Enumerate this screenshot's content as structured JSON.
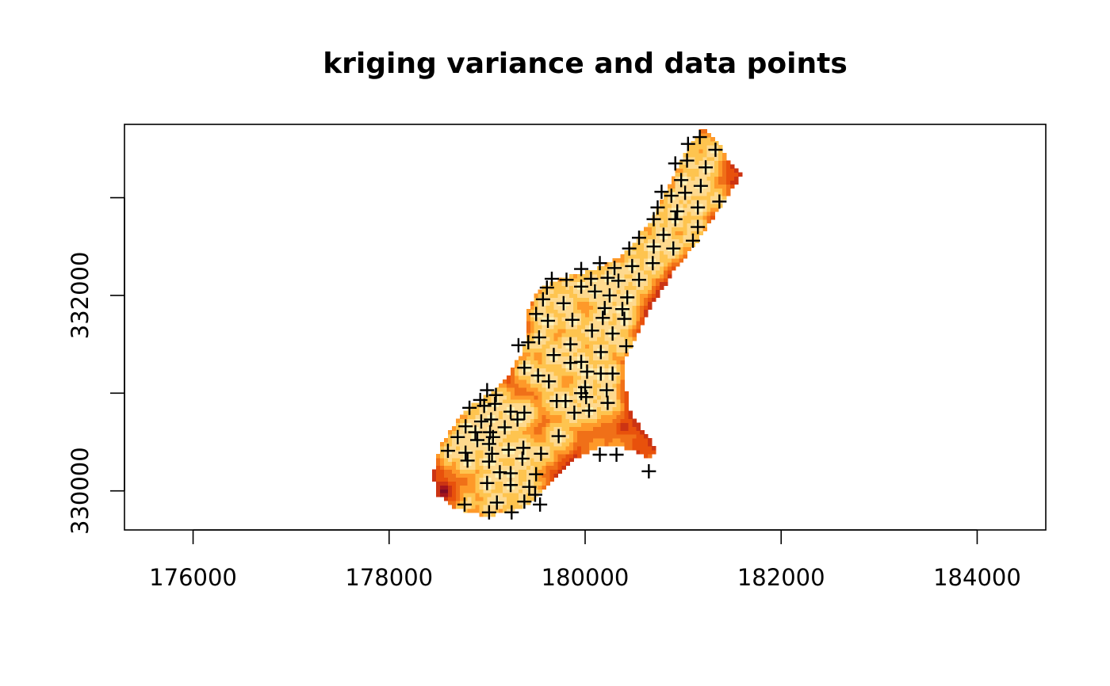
{
  "chart_data": {
    "type": "heatmap",
    "title": "kriging variance and data points",
    "xlabel": "",
    "ylabel": "",
    "xlim": [
      175300,
      184700
    ],
    "ylim": [
      329600,
      333750
    ],
    "x_ticks": [
      176000,
      178000,
      180000,
      182000,
      184000
    ],
    "x_tick_labels": [
      "176000",
      "178000",
      "180000",
      "182000",
      "184000"
    ],
    "y_ticks": [
      330000,
      331000,
      332000,
      333000
    ],
    "y_tick_labels": [
      "330000",
      "",
      "332000",
      ""
    ],
    "grid": false,
    "legend": "none",
    "grid_cell_size": 40,
    "color_scale": [
      "#fef0b6",
      "#fed98e",
      "#fec44f",
      "#fe9929",
      "#f07018",
      "#e8510c",
      "#cc3413",
      "#a4141c",
      "#7f0a25"
    ],
    "region_outline": [
      [
        181210,
        333730
      ],
      [
        181380,
        333560
      ],
      [
        181460,
        333400
      ],
      [
        181590,
        333240
      ],
      [
        181470,
        333040
      ],
      [
        181320,
        332820
      ],
      [
        181150,
        332560
      ],
      [
        180900,
        332240
      ],
      [
        180720,
        331960
      ],
      [
        180560,
        331660
      ],
      [
        180420,
        331360
      ],
      [
        180400,
        331090
      ],
      [
        180470,
        330780
      ],
      [
        180640,
        330560
      ],
      [
        180720,
        330440
      ],
      [
        180680,
        330320
      ],
      [
        180560,
        330390
      ],
      [
        180350,
        330460
      ],
      [
        180120,
        330450
      ],
      [
        179900,
        330320
      ],
      [
        179660,
        330110
      ],
      [
        179450,
        329890
      ],
      [
        179230,
        329770
      ],
      [
        178960,
        329750
      ],
      [
        178700,
        329810
      ],
      [
        178500,
        329960
      ],
      [
        178440,
        330160
      ],
      [
        178520,
        330460
      ],
      [
        178680,
        330700
      ],
      [
        178880,
        330900
      ],
      [
        179080,
        331040
      ],
      [
        179230,
        331200
      ],
      [
        179340,
        331390
      ],
      [
        179420,
        331610
      ],
      [
        179420,
        331850
      ],
      [
        179520,
        332050
      ],
      [
        179780,
        332180
      ],
      [
        180100,
        332270
      ],
      [
        180350,
        332390
      ],
      [
        180540,
        332590
      ],
      [
        180710,
        332830
      ],
      [
        180820,
        333070
      ],
      [
        180960,
        333320
      ],
      [
        181080,
        333560
      ]
    ],
    "high_variance_zones": [
      {
        "x": 180870,
        "y": 332000,
        "level": 0.95
      },
      {
        "x": 180600,
        "y": 331250,
        "level": 0.7
      },
      {
        "x": 178560,
        "y": 330000,
        "level": 0.95
      },
      {
        "x": 180400,
        "y": 330650,
        "level": 0.78
      },
      {
        "x": 181560,
        "y": 333230,
        "level": 0.6
      },
      {
        "x": 179700,
        "y": 330150,
        "level": 0.72
      },
      {
        "x": 181200,
        "y": 333730,
        "level": 0.55
      }
    ],
    "data_points": [
      [
        181170,
        333620
      ],
      [
        181050,
        333550
      ],
      [
        181330,
        333490
      ],
      [
        180920,
        333350
      ],
      [
        181040,
        333380
      ],
      [
        181230,
        333310
      ],
      [
        180980,
        333180
      ],
      [
        181180,
        333120
      ],
      [
        180780,
        333060
      ],
      [
        180880,
        333020
      ],
      [
        181020,
        333050
      ],
      [
        181370,
        332960
      ],
      [
        180740,
        332900
      ],
      [
        180940,
        332860
      ],
      [
        181150,
        332900
      ],
      [
        180700,
        332780
      ],
      [
        180920,
        332780
      ],
      [
        181150,
        332700
      ],
      [
        180550,
        332590
      ],
      [
        180800,
        332620
      ],
      [
        181100,
        332560
      ],
      [
        180450,
        332480
      ],
      [
        180700,
        332500
      ],
      [
        180900,
        332480
      ],
      [
        180150,
        332330
      ],
      [
        180300,
        332280
      ],
      [
        180480,
        332300
      ],
      [
        180690,
        332330
      ],
      [
        179960,
        332270
      ],
      [
        180230,
        332180
      ],
      [
        180550,
        332160
      ],
      [
        179660,
        332170
      ],
      [
        179810,
        332160
      ],
      [
        180060,
        332170
      ],
      [
        180340,
        332150
      ],
      [
        179960,
        332090
      ],
      [
        179610,
        332080
      ],
      [
        180100,
        332040
      ],
      [
        180250,
        332000
      ],
      [
        180430,
        331980
      ],
      [
        179570,
        331960
      ],
      [
        179780,
        331920
      ],
      [
        180200,
        331870
      ],
      [
        180380,
        331860
      ],
      [
        179500,
        331810
      ],
      [
        179620,
        331740
      ],
      [
        179870,
        331750
      ],
      [
        180180,
        331770
      ],
      [
        180400,
        331760
      ],
      [
        180070,
        331640
      ],
      [
        179530,
        331570
      ],
      [
        180280,
        331610
      ],
      [
        179420,
        331520
      ],
      [
        179850,
        331500
      ],
      [
        180420,
        331480
      ],
      [
        179320,
        331490
      ],
      [
        180160,
        331420
      ],
      [
        179680,
        331390
      ],
      [
        179850,
        331310
      ],
      [
        179960,
        331320
      ],
      [
        180020,
        331220
      ],
      [
        179380,
        331260
      ],
      [
        180280,
        331200
      ],
      [
        180160,
        331200
      ],
      [
        179520,
        331180
      ],
      [
        179630,
        331120
      ],
      [
        180000,
        331060
      ],
      [
        179960,
        331000
      ],
      [
        180220,
        331030
      ],
      [
        180010,
        330960
      ],
      [
        180230,
        330900
      ],
      [
        179000,
        331030
      ],
      [
        179090,
        330980
      ],
      [
        178930,
        330930
      ],
      [
        179710,
        330920
      ],
      [
        179800,
        330920
      ],
      [
        178820,
        330850
      ],
      [
        178970,
        330870
      ],
      [
        179080,
        330890
      ],
      [
        179240,
        330810
      ],
      [
        179380,
        330800
      ],
      [
        179890,
        330800
      ],
      [
        180040,
        330820
      ],
      [
        178940,
        330710
      ],
      [
        179040,
        330730
      ],
      [
        179310,
        330730
      ],
      [
        178780,
        330660
      ],
      [
        178880,
        330600
      ],
      [
        179030,
        330600
      ],
      [
        179180,
        330650
      ],
      [
        178700,
        330550
      ],
      [
        178900,
        330520
      ],
      [
        179060,
        330550
      ],
      [
        179020,
        330480
      ],
      [
        179370,
        330440
      ],
      [
        179730,
        330560
      ],
      [
        179550,
        330380
      ],
      [
        178600,
        330410
      ],
      [
        178780,
        330390
      ],
      [
        179050,
        330380
      ],
      [
        179220,
        330420
      ],
      [
        178800,
        330310
      ],
      [
        179020,
        330300
      ],
      [
        179360,
        330330
      ],
      [
        180150,
        330370
      ],
      [
        180320,
        330370
      ],
      [
        179240,
        330180
      ],
      [
        179130,
        330190
      ],
      [
        179500,
        330170
      ],
      [
        179000,
        330080
      ],
      [
        179240,
        330060
      ],
      [
        180650,
        330200
      ],
      [
        179430,
        330040
      ],
      [
        179100,
        329880
      ],
      [
        179380,
        329890
      ],
      [
        179540,
        329860
      ],
      [
        178770,
        329860
      ],
      [
        179490,
        329960
      ],
      [
        179250,
        329780
      ],
      [
        179020,
        329780
      ]
    ]
  }
}
